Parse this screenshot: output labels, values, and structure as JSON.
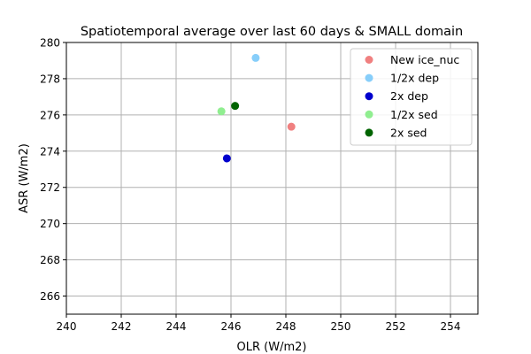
{
  "chart_data": {
    "type": "scatter",
    "title": "Spatiotemporal average over last 60 days & SMALL domain",
    "xlabel": "OLR (W/m2)",
    "ylabel": "ASR (W/m2)",
    "xlim": [
      240,
      255
    ],
    "ylim": [
      265,
      280
    ],
    "xticks": [
      "240",
      "242",
      "244",
      "246",
      "248",
      "250",
      "252",
      "254"
    ],
    "yticks": [
      "266",
      "268",
      "270",
      "272",
      "274",
      "276",
      "278",
      "280"
    ],
    "grid": true,
    "legend_position": "top-right",
    "series": [
      {
        "name": "New ice_nuc",
        "color": "#f08080",
        "points": [
          {
            "x": 248.2,
            "y": 275.35
          }
        ]
      },
      {
        "name": "1/2x dep",
        "color": "#87cefa",
        "points": [
          {
            "x": 246.9,
            "y": 279.15
          }
        ]
      },
      {
        "name": "2x dep",
        "color": "#0000cd",
        "points": [
          {
            "x": 245.85,
            "y": 273.6
          }
        ]
      },
      {
        "name": "1/2x sed",
        "color": "#90ee90",
        "points": [
          {
            "x": 245.65,
            "y": 276.2
          }
        ]
      },
      {
        "name": "2x sed",
        "color": "#006400",
        "points": [
          {
            "x": 246.15,
            "y": 276.5
          }
        ]
      }
    ]
  }
}
